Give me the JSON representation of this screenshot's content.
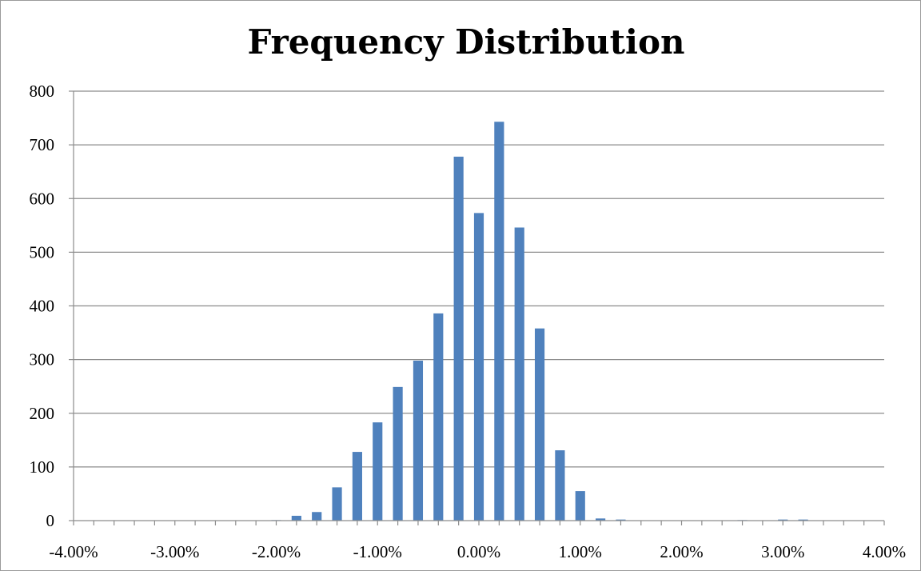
{
  "chart_data": {
    "type": "bar",
    "title": "Frequency Distribution",
    "xlabel": "",
    "ylabel": "",
    "xlim": [
      -4.0,
      4.0
    ],
    "ylim": [
      0,
      800
    ],
    "y_ticks": [
      0,
      100,
      200,
      300,
      400,
      500,
      600,
      700,
      800
    ],
    "x_tick_values": [
      -4,
      -3,
      -2,
      -1,
      0,
      1,
      2,
      3,
      4
    ],
    "x_tick_labels": [
      "-4.00%",
      "-3.00%",
      "-2.00%",
      "-1.00%",
      "0.00%",
      "1.00%",
      "2.00%",
      "3.00%",
      "4.00%"
    ],
    "grid": {
      "horizontal": true,
      "vertical": false
    },
    "bar_color": "#4f81bd",
    "x_unit": "%",
    "x": [
      -3.8,
      -3.6,
      -3.4,
      -3.2,
      -3.0,
      -2.8,
      -2.6,
      -2.4,
      -2.2,
      -2.0,
      -1.8,
      -1.6,
      -1.4,
      -1.2,
      -1.0,
      -0.8,
      -0.6,
      -0.4,
      -0.2,
      0.0,
      0.2,
      0.4,
      0.6,
      0.8,
      1.0,
      1.2,
      1.4,
      1.6,
      1.8,
      2.0,
      2.2,
      2.4,
      2.6,
      2.8,
      3.0,
      3.2,
      3.4,
      3.6,
      3.8
    ],
    "values": [
      0,
      0,
      0,
      0,
      0,
      0,
      0,
      0,
      0,
      1,
      9,
      16,
      62,
      128,
      183,
      249,
      298,
      386,
      678,
      573,
      743,
      546,
      358,
      131,
      55,
      4,
      2,
      0,
      0,
      0,
      0,
      0,
      1,
      0,
      2,
      2,
      0,
      0,
      0
    ]
  }
}
